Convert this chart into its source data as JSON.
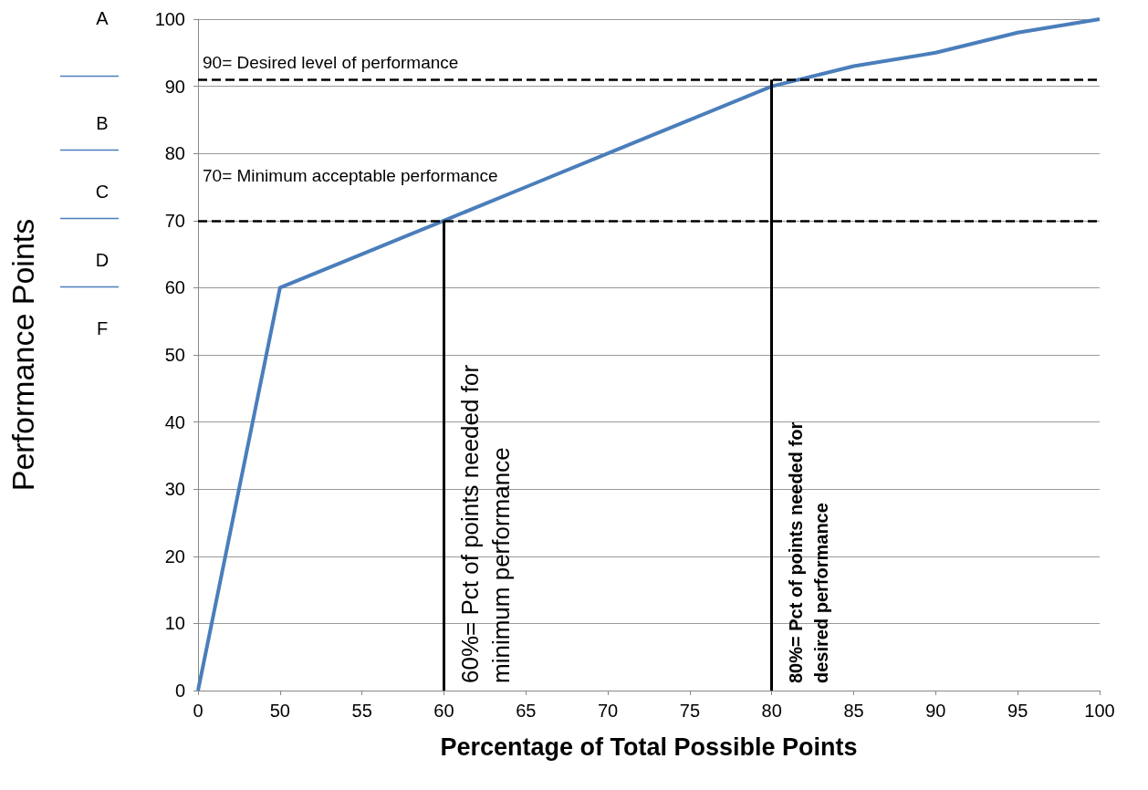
{
  "chart_data": {
    "type": "line",
    "xlabel": "Percentage of Total Possible Points",
    "ylabel": "Performance Points",
    "categories": [
      "0",
      "50",
      "55",
      "60",
      "65",
      "70",
      "75",
      "80",
      "85",
      "90",
      "95",
      "100"
    ],
    "series": [
      {
        "color": "#4a7ebb",
        "values": [
          0,
          60,
          65,
          70,
          75,
          80,
          85,
          90,
          93,
          95,
          98,
          100
        ]
      }
    ],
    "ylim": [
      0,
      100
    ],
    "yticks": [
      0,
      10,
      20,
      30,
      40,
      50,
      60,
      70,
      80,
      90,
      100
    ],
    "grid": "y",
    "marker": "none",
    "line_style": "solid",
    "ref_lines": [
      {
        "axis": "y",
        "value": 91,
        "label": "90= Desired level of performance",
        "line_style": "dashed",
        "color": "#000000"
      },
      {
        "axis": "y",
        "value": 70,
        "label": "70= Minimum acceptable performance",
        "line_style": "dashed",
        "color": "#000000"
      },
      {
        "axis": "x",
        "value": "80",
        "label": "80%= Pct of points needed for desired performance",
        "color": "#000000"
      },
      {
        "axis": "x",
        "value": "60",
        "label": "60%= Pct of points needed for minimum performance",
        "color": "#000000"
      }
    ],
    "annotations": [
      "A",
      "B",
      "C",
      "D",
      "F"
    ]
  }
}
